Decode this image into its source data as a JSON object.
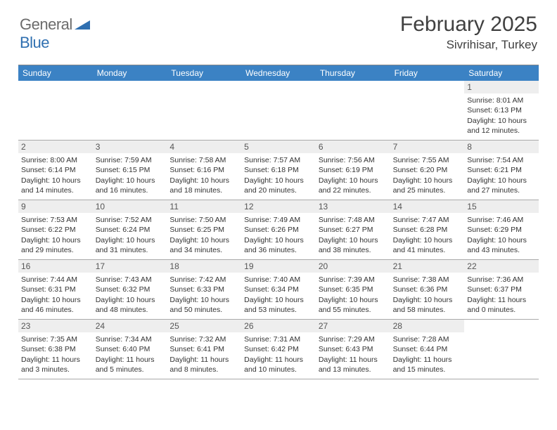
{
  "logo": {
    "word1": "General",
    "word2": "Blue"
  },
  "title": "February 2025",
  "location": "Sivrihisar, Turkey",
  "colors": {
    "header_bg": "#3b82c4",
    "header_text": "#ffffff",
    "daynum_bg": "#eeeeee",
    "border": "#aaaaaa",
    "logo_gray": "#6b6b6b",
    "logo_blue": "#2f6fb0"
  },
  "day_headers": [
    "Sunday",
    "Monday",
    "Tuesday",
    "Wednesday",
    "Thursday",
    "Friday",
    "Saturday"
  ],
  "weeks": [
    [
      {
        "empty": true
      },
      {
        "empty": true
      },
      {
        "empty": true
      },
      {
        "empty": true
      },
      {
        "empty": true
      },
      {
        "empty": true
      },
      {
        "n": "1",
        "sunrise": "Sunrise: 8:01 AM",
        "sunset": "Sunset: 6:13 PM",
        "dl1": "Daylight: 10 hours",
        "dl2": "and 12 minutes."
      }
    ],
    [
      {
        "n": "2",
        "sunrise": "Sunrise: 8:00 AM",
        "sunset": "Sunset: 6:14 PM",
        "dl1": "Daylight: 10 hours",
        "dl2": "and 14 minutes."
      },
      {
        "n": "3",
        "sunrise": "Sunrise: 7:59 AM",
        "sunset": "Sunset: 6:15 PM",
        "dl1": "Daylight: 10 hours",
        "dl2": "and 16 minutes."
      },
      {
        "n": "4",
        "sunrise": "Sunrise: 7:58 AM",
        "sunset": "Sunset: 6:16 PM",
        "dl1": "Daylight: 10 hours",
        "dl2": "and 18 minutes."
      },
      {
        "n": "5",
        "sunrise": "Sunrise: 7:57 AM",
        "sunset": "Sunset: 6:18 PM",
        "dl1": "Daylight: 10 hours",
        "dl2": "and 20 minutes."
      },
      {
        "n": "6",
        "sunrise": "Sunrise: 7:56 AM",
        "sunset": "Sunset: 6:19 PM",
        "dl1": "Daylight: 10 hours",
        "dl2": "and 22 minutes."
      },
      {
        "n": "7",
        "sunrise": "Sunrise: 7:55 AM",
        "sunset": "Sunset: 6:20 PM",
        "dl1": "Daylight: 10 hours",
        "dl2": "and 25 minutes."
      },
      {
        "n": "8",
        "sunrise": "Sunrise: 7:54 AM",
        "sunset": "Sunset: 6:21 PM",
        "dl1": "Daylight: 10 hours",
        "dl2": "and 27 minutes."
      }
    ],
    [
      {
        "n": "9",
        "sunrise": "Sunrise: 7:53 AM",
        "sunset": "Sunset: 6:22 PM",
        "dl1": "Daylight: 10 hours",
        "dl2": "and 29 minutes."
      },
      {
        "n": "10",
        "sunrise": "Sunrise: 7:52 AM",
        "sunset": "Sunset: 6:24 PM",
        "dl1": "Daylight: 10 hours",
        "dl2": "and 31 minutes."
      },
      {
        "n": "11",
        "sunrise": "Sunrise: 7:50 AM",
        "sunset": "Sunset: 6:25 PM",
        "dl1": "Daylight: 10 hours",
        "dl2": "and 34 minutes."
      },
      {
        "n": "12",
        "sunrise": "Sunrise: 7:49 AM",
        "sunset": "Sunset: 6:26 PM",
        "dl1": "Daylight: 10 hours",
        "dl2": "and 36 minutes."
      },
      {
        "n": "13",
        "sunrise": "Sunrise: 7:48 AM",
        "sunset": "Sunset: 6:27 PM",
        "dl1": "Daylight: 10 hours",
        "dl2": "and 38 minutes."
      },
      {
        "n": "14",
        "sunrise": "Sunrise: 7:47 AM",
        "sunset": "Sunset: 6:28 PM",
        "dl1": "Daylight: 10 hours",
        "dl2": "and 41 minutes."
      },
      {
        "n": "15",
        "sunrise": "Sunrise: 7:46 AM",
        "sunset": "Sunset: 6:29 PM",
        "dl1": "Daylight: 10 hours",
        "dl2": "and 43 minutes."
      }
    ],
    [
      {
        "n": "16",
        "sunrise": "Sunrise: 7:44 AM",
        "sunset": "Sunset: 6:31 PM",
        "dl1": "Daylight: 10 hours",
        "dl2": "and 46 minutes."
      },
      {
        "n": "17",
        "sunrise": "Sunrise: 7:43 AM",
        "sunset": "Sunset: 6:32 PM",
        "dl1": "Daylight: 10 hours",
        "dl2": "and 48 minutes."
      },
      {
        "n": "18",
        "sunrise": "Sunrise: 7:42 AM",
        "sunset": "Sunset: 6:33 PM",
        "dl1": "Daylight: 10 hours",
        "dl2": "and 50 minutes."
      },
      {
        "n": "19",
        "sunrise": "Sunrise: 7:40 AM",
        "sunset": "Sunset: 6:34 PM",
        "dl1": "Daylight: 10 hours",
        "dl2": "and 53 minutes."
      },
      {
        "n": "20",
        "sunrise": "Sunrise: 7:39 AM",
        "sunset": "Sunset: 6:35 PM",
        "dl1": "Daylight: 10 hours",
        "dl2": "and 55 minutes."
      },
      {
        "n": "21",
        "sunrise": "Sunrise: 7:38 AM",
        "sunset": "Sunset: 6:36 PM",
        "dl1": "Daylight: 10 hours",
        "dl2": "and 58 minutes."
      },
      {
        "n": "22",
        "sunrise": "Sunrise: 7:36 AM",
        "sunset": "Sunset: 6:37 PM",
        "dl1": "Daylight: 11 hours",
        "dl2": "and 0 minutes."
      }
    ],
    [
      {
        "n": "23",
        "sunrise": "Sunrise: 7:35 AM",
        "sunset": "Sunset: 6:38 PM",
        "dl1": "Daylight: 11 hours",
        "dl2": "and 3 minutes."
      },
      {
        "n": "24",
        "sunrise": "Sunrise: 7:34 AM",
        "sunset": "Sunset: 6:40 PM",
        "dl1": "Daylight: 11 hours",
        "dl2": "and 5 minutes."
      },
      {
        "n": "25",
        "sunrise": "Sunrise: 7:32 AM",
        "sunset": "Sunset: 6:41 PM",
        "dl1": "Daylight: 11 hours",
        "dl2": "and 8 minutes."
      },
      {
        "n": "26",
        "sunrise": "Sunrise: 7:31 AM",
        "sunset": "Sunset: 6:42 PM",
        "dl1": "Daylight: 11 hours",
        "dl2": "and 10 minutes."
      },
      {
        "n": "27",
        "sunrise": "Sunrise: 7:29 AM",
        "sunset": "Sunset: 6:43 PM",
        "dl1": "Daylight: 11 hours",
        "dl2": "and 13 minutes."
      },
      {
        "n": "28",
        "sunrise": "Sunrise: 7:28 AM",
        "sunset": "Sunset: 6:44 PM",
        "dl1": "Daylight: 11 hours",
        "dl2": "and 15 minutes."
      },
      {
        "empty": true
      }
    ]
  ]
}
